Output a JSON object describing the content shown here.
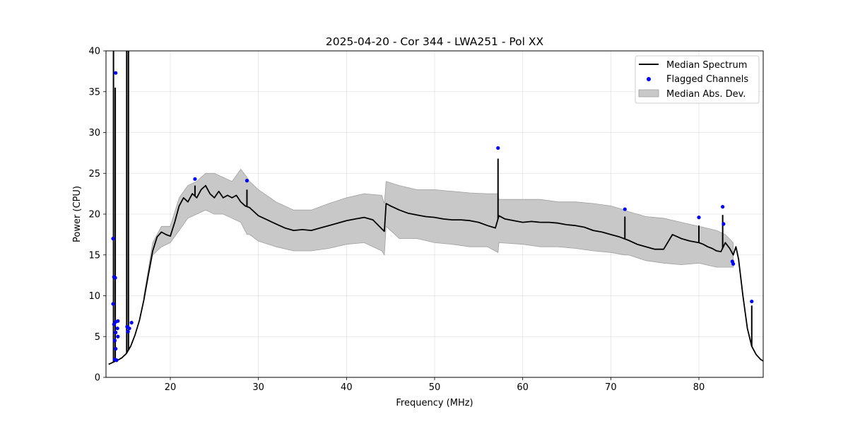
{
  "chart_data": {
    "type": "line",
    "title": "2025-04-20 - Cor 344 - LWA251 - Pol XX",
    "xlabel": "Frequency (MHz)",
    "ylabel": "Power (CPU)",
    "xlim": [
      12.7,
      87.3
    ],
    "ylim": [
      0,
      40
    ],
    "xticks": [
      20,
      30,
      40,
      50,
      60,
      70,
      80
    ],
    "yticks": [
      0,
      5,
      10,
      15,
      20,
      25,
      30,
      35,
      40
    ],
    "grid": true,
    "legend_position": "upper-right",
    "legend": [
      "Median Spectrum",
      "Flagged Channels",
      "Median Abs. Dev."
    ],
    "colors": {
      "median": "#000000",
      "flagged": "#0000ff",
      "mad": "#c8c8c8",
      "mad_edge": "#a0a0a0"
    },
    "median_spectrum": {
      "x": [
        13.0,
        13.2,
        13.4,
        13.6,
        13.8,
        14.0,
        14.2,
        14.5,
        15.0,
        15.5,
        16.0,
        16.5,
        17.0,
        17.5,
        18.0,
        18.5,
        19.0,
        19.5,
        20.0,
        20.5,
        21.0,
        21.5,
        22.0,
        22.5,
        23.0,
        23.5,
        24.0,
        24.5,
        25.0,
        25.5,
        26.0,
        26.5,
        27.0,
        27.5,
        28.0,
        28.5,
        29.0,
        29.5,
        30.0,
        31.0,
        32.0,
        33.0,
        34.0,
        35.0,
        36.0,
        37.0,
        38.0,
        39.0,
        40.0,
        41.0,
        42.0,
        43.0,
        44.0,
        44.3,
        44.5,
        45.0,
        46.0,
        47.0,
        48.0,
        49.0,
        50.0,
        51.0,
        52.0,
        53.0,
        54.0,
        55.0,
        56.0,
        56.9,
        57.3,
        58.0,
        59.0,
        60.0,
        61.0,
        62.0,
        63.0,
        64.0,
        65.0,
        66.0,
        67.0,
        68.0,
        69.0,
        70.0,
        71.0,
        72.0,
        73.0,
        74.0,
        75.0,
        76.0,
        77.0,
        78.0,
        79.0,
        80.0,
        80.5,
        81.0,
        81.5,
        82.0,
        82.5,
        83.0,
        83.5,
        83.9,
        84.2,
        84.5,
        85.0,
        85.5,
        86.0,
        86.5,
        87.0,
        87.3
      ],
      "y": [
        1.6,
        1.7,
        1.8,
        1.9,
        2.0,
        2.1,
        2.2,
        2.4,
        2.9,
        3.8,
        5.2,
        7.0,
        9.5,
        12.5,
        15.5,
        17.2,
        17.8,
        17.5,
        17.3,
        19.0,
        21.0,
        22.0,
        21.5,
        22.5,
        22.0,
        23.0,
        23.5,
        22.5,
        22.0,
        22.8,
        22.0,
        22.3,
        22.0,
        22.3,
        21.5,
        21.0,
        20.8,
        20.3,
        19.8,
        19.3,
        18.8,
        18.3,
        18.0,
        18.1,
        18.0,
        18.3,
        18.6,
        18.9,
        19.2,
        19.4,
        19.6,
        19.3,
        18.2,
        17.9,
        21.3,
        21.0,
        20.5,
        20.1,
        19.9,
        19.7,
        19.6,
        19.4,
        19.3,
        19.3,
        19.2,
        19.0,
        18.6,
        18.3,
        19.8,
        19.4,
        19.2,
        19.0,
        19.1,
        19.0,
        19.0,
        18.9,
        18.7,
        18.6,
        18.4,
        18.0,
        17.8,
        17.5,
        17.2,
        16.8,
        16.3,
        16.0,
        15.7,
        15.7,
        17.5,
        17.0,
        16.7,
        16.5,
        16.3,
        16.0,
        15.8,
        15.5,
        15.4,
        16.5,
        15.8,
        15.0,
        16.0,
        14.5,
        10.0,
        6.0,
        3.8,
        2.8,
        2.2,
        2.0
      ],
      "spikes": [
        {
          "x": 13.55,
          "y": 40
        },
        {
          "x": 13.75,
          "y": 35.5
        },
        {
          "x": 15.05,
          "y": 40
        },
        {
          "x": 15.25,
          "y": 40
        },
        {
          "x": 22.8,
          "y": 23.5
        },
        {
          "x": 28.7,
          "y": 23.0
        },
        {
          "x": 57.2,
          "y": 26.8
        },
        {
          "x": 71.6,
          "y": 19.7
        },
        {
          "x": 80.0,
          "y": 18.6
        },
        {
          "x": 82.7,
          "y": 19.9
        },
        {
          "x": 86.0,
          "y": 8.8
        }
      ]
    },
    "mad_band": {
      "x": [
        17.0,
        18.0,
        19.0,
        20.0,
        21.0,
        22.0,
        23.0,
        24.0,
        25.0,
        26.0,
        27.0,
        28.0,
        28.7,
        29.0,
        30.0,
        32.0,
        34.0,
        36.0,
        38.0,
        40.0,
        42.0,
        44.0,
        44.3,
        44.5,
        46.0,
        48.0,
        50.0,
        52.0,
        54.0,
        56.0,
        57.2,
        57.3,
        60.0,
        62.0,
        64.0,
        66.0,
        68.0,
        70.0,
        71.6,
        72.0,
        74.0,
        76.0,
        78.0,
        80.0,
        82.0,
        83.0,
        83.9
      ],
      "upper": [
        10.0,
        16.5,
        18.5,
        18.5,
        22.0,
        23.5,
        24.0,
        25.0,
        25.0,
        24.5,
        24.0,
        25.5,
        24.5,
        24.0,
        23.0,
        21.5,
        20.5,
        20.5,
        21.3,
        22.0,
        22.5,
        22.3,
        21.3,
        24.0,
        23.5,
        23.0,
        23.0,
        22.8,
        22.6,
        22.5,
        22.5,
        21.8,
        21.8,
        21.8,
        21.5,
        21.5,
        21.3,
        21.0,
        20.5,
        20.3,
        19.7,
        19.5,
        19.0,
        18.5,
        18.0,
        17.5,
        16.5
      ],
      "lower": [
        9.5,
        15.0,
        16.0,
        16.5,
        18.0,
        19.5,
        20.0,
        20.5,
        20.0,
        20.0,
        19.5,
        19.0,
        17.5,
        17.5,
        16.7,
        16.0,
        15.5,
        15.5,
        15.8,
        16.3,
        16.5,
        15.5,
        15.0,
        18.5,
        17.0,
        17.0,
        16.5,
        16.3,
        16.0,
        16.0,
        15.3,
        16.5,
        16.3,
        16.0,
        16.0,
        15.8,
        15.5,
        15.3,
        15.0,
        15.0,
        14.3,
        14.0,
        13.8,
        14.0,
        13.5,
        13.5,
        13.5
      ]
    },
    "flagged_channels": [
      {
        "x": 13.5,
        "y": 17.0
      },
      {
        "x": 13.5,
        "y": 9.0
      },
      {
        "x": 13.6,
        "y": 12.3
      },
      {
        "x": 13.75,
        "y": 12.2
      },
      {
        "x": 13.6,
        "y": 6.5
      },
      {
        "x": 13.8,
        "y": 6.8
      },
      {
        "x": 14.05,
        "y": 6.9
      },
      {
        "x": 13.8,
        "y": 5.5
      },
      {
        "x": 14.0,
        "y": 6.0
      },
      {
        "x": 13.7,
        "y": 4.5
      },
      {
        "x": 14.05,
        "y": 5.0
      },
      {
        "x": 13.8,
        "y": 3.5
      },
      {
        "x": 13.7,
        "y": 2.2
      },
      {
        "x": 13.9,
        "y": 2.1
      },
      {
        "x": 13.8,
        "y": 37.3
      },
      {
        "x": 15.1,
        "y": 6.2
      },
      {
        "x": 15.35,
        "y": 6.0
      },
      {
        "x": 15.6,
        "y": 6.7
      },
      {
        "x": 15.2,
        "y": 5.6
      },
      {
        "x": 22.8,
        "y": 24.3
      },
      {
        "x": 28.7,
        "y": 24.1
      },
      {
        "x": 57.2,
        "y": 28.1
      },
      {
        "x": 71.6,
        "y": 20.6
      },
      {
        "x": 80.0,
        "y": 19.6
      },
      {
        "x": 82.7,
        "y": 20.9
      },
      {
        "x": 82.8,
        "y": 18.8
      },
      {
        "x": 83.8,
        "y": 14.2
      },
      {
        "x": 83.9,
        "y": 13.9
      },
      {
        "x": 86.0,
        "y": 9.3
      }
    ]
  }
}
